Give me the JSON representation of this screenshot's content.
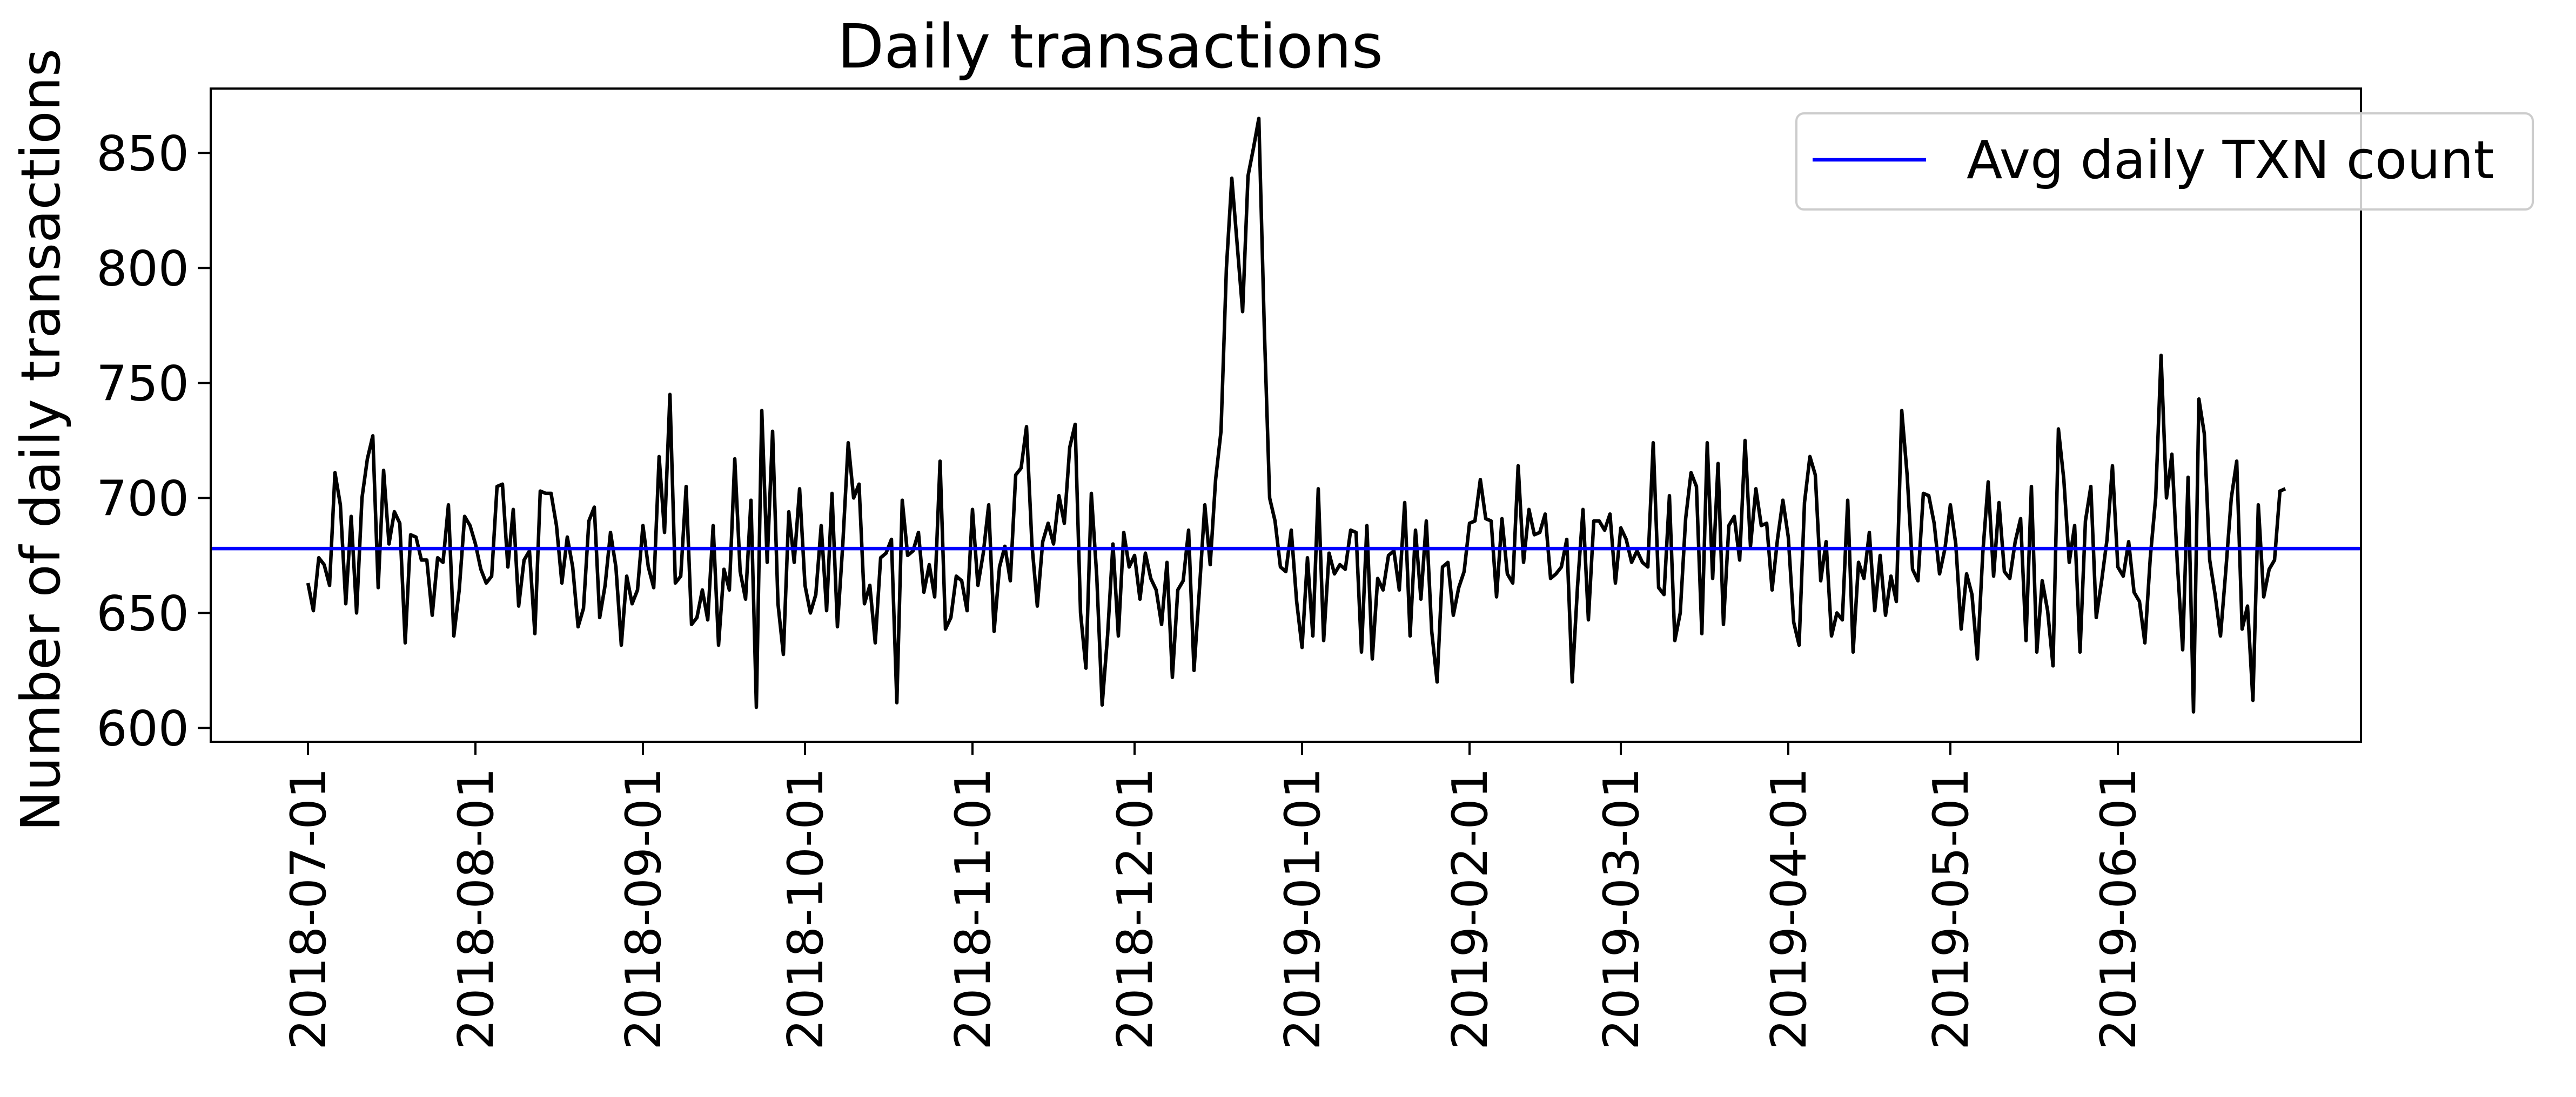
{
  "chart_data": {
    "type": "line",
    "title": "Daily transactions",
    "xlabel": "",
    "ylabel": "Number of daily transactions",
    "x_start": "2018-07-01",
    "x_end": "2019-06-30",
    "xlim": [
      "2018-06-13",
      "2019-07-16"
    ],
    "ylim": [
      594,
      878
    ],
    "y_ticks": [
      600,
      650,
      700,
      750,
      800,
      850
    ],
    "x_ticks": [
      "2018-07-01",
      "2018-08-01",
      "2018-09-01",
      "2018-10-01",
      "2018-11-01",
      "2018-12-01",
      "2019-01-01",
      "2019-02-01",
      "2019-03-01",
      "2019-04-01",
      "2019-05-01",
      "2019-06-01"
    ],
    "grid": false,
    "legend_position": "top-right",
    "series": [
      {
        "name": "",
        "color": "#000000",
        "values": [
          663,
          651,
          674,
          671,
          662,
          711,
          697,
          654,
          692,
          650,
          700,
          717,
          727,
          661,
          712,
          680,
          694,
          689,
          637,
          684,
          683,
          673,
          673,
          649,
          674,
          672,
          697,
          640,
          660,
          692,
          688,
          680,
          669,
          663,
          666,
          705,
          706,
          670,
          695,
          653,
          673,
          677,
          641,
          703,
          702,
          702,
          688,
          663,
          683,
          670,
          644,
          652,
          690,
          696,
          648,
          662,
          685,
          670,
          636,
          666,
          654,
          660,
          688,
          670,
          661,
          718,
          685,
          745,
          663,
          666,
          705,
          645,
          648,
          660,
          647,
          688,
          636,
          669,
          660,
          717,
          668,
          656,
          699,
          609,
          738,
          672,
          729,
          654,
          632,
          694,
          672,
          704,
          662,
          650,
          658,
          688,
          651,
          702,
          644,
          680,
          724,
          700,
          706,
          654,
          662,
          637,
          674,
          676,
          682,
          611,
          699,
          675,
          677,
          685,
          659,
          671,
          657,
          716,
          643,
          648,
          666,
          664,
          651,
          695,
          662,
          676,
          697,
          642,
          670,
          679,
          664,
          710,
          713,
          731,
          680,
          653,
          681,
          689,
          680,
          701,
          689,
          722,
          732,
          650,
          626,
          702,
          666,
          610,
          640,
          680,
          640,
          685,
          670,
          675,
          656,
          676,
          665,
          660,
          645,
          672,
          622,
          660,
          664,
          686,
          625,
          660,
          697,
          671,
          708,
          729,
          800,
          839,
          810,
          781,
          840,
          852,
          865,
          775,
          700,
          690,
          670,
          668,
          686,
          655,
          635,
          674,
          640,
          704,
          638,
          676,
          667,
          671,
          669,
          686,
          685,
          633,
          688,
          630,
          665,
          660,
          675,
          677,
          660,
          698,
          640,
          686,
          656,
          690,
          642,
          620,
          670,
          672,
          649,
          661,
          668,
          689,
          690,
          708,
          691,
          690,
          657,
          691,
          667,
          663,
          714,
          672,
          695,
          684,
          685,
          693,
          665,
          667,
          670,
          682,
          620,
          662,
          695,
          647,
          690,
          690,
          686,
          693,
          663,
          687,
          682,
          672,
          677,
          672,
          670,
          724,
          661,
          658,
          701,
          638,
          650,
          691,
          711,
          705,
          641,
          724,
          665,
          715,
          645,
          688,
          692,
          673,
          725,
          679,
          704,
          688,
          689,
          660,
          682,
          699,
          683,
          646,
          636,
          698,
          718,
          710,
          664,
          681,
          640,
          650,
          647,
          699,
          633,
          672,
          665,
          685,
          651,
          675,
          649,
          666,
          655,
          738,
          710,
          669,
          664,
          702,
          701,
          689,
          667,
          678,
          697,
          680,
          643,
          667,
          658,
          630,
          676,
          707,
          666,
          698,
          668,
          665,
          681,
          691,
          638,
          705,
          633,
          664,
          651,
          627,
          730,
          708,
          672,
          688,
          633,
          690,
          705,
          648,
          664,
          682,
          714,
          670,
          666,
          681,
          659,
          655,
          637,
          674,
          700,
          762,
          700,
          719,
          672,
          634,
          709,
          607,
          743,
          728,
          673,
          658,
          640,
          669,
          700,
          716,
          643,
          653,
          612,
          697,
          657,
          669,
          673,
          703,
          704
        ]
      },
      {
        "name": "Avg daily TXN count",
        "color": "#0000ff",
        "values": [
          678
        ]
      }
    ]
  }
}
